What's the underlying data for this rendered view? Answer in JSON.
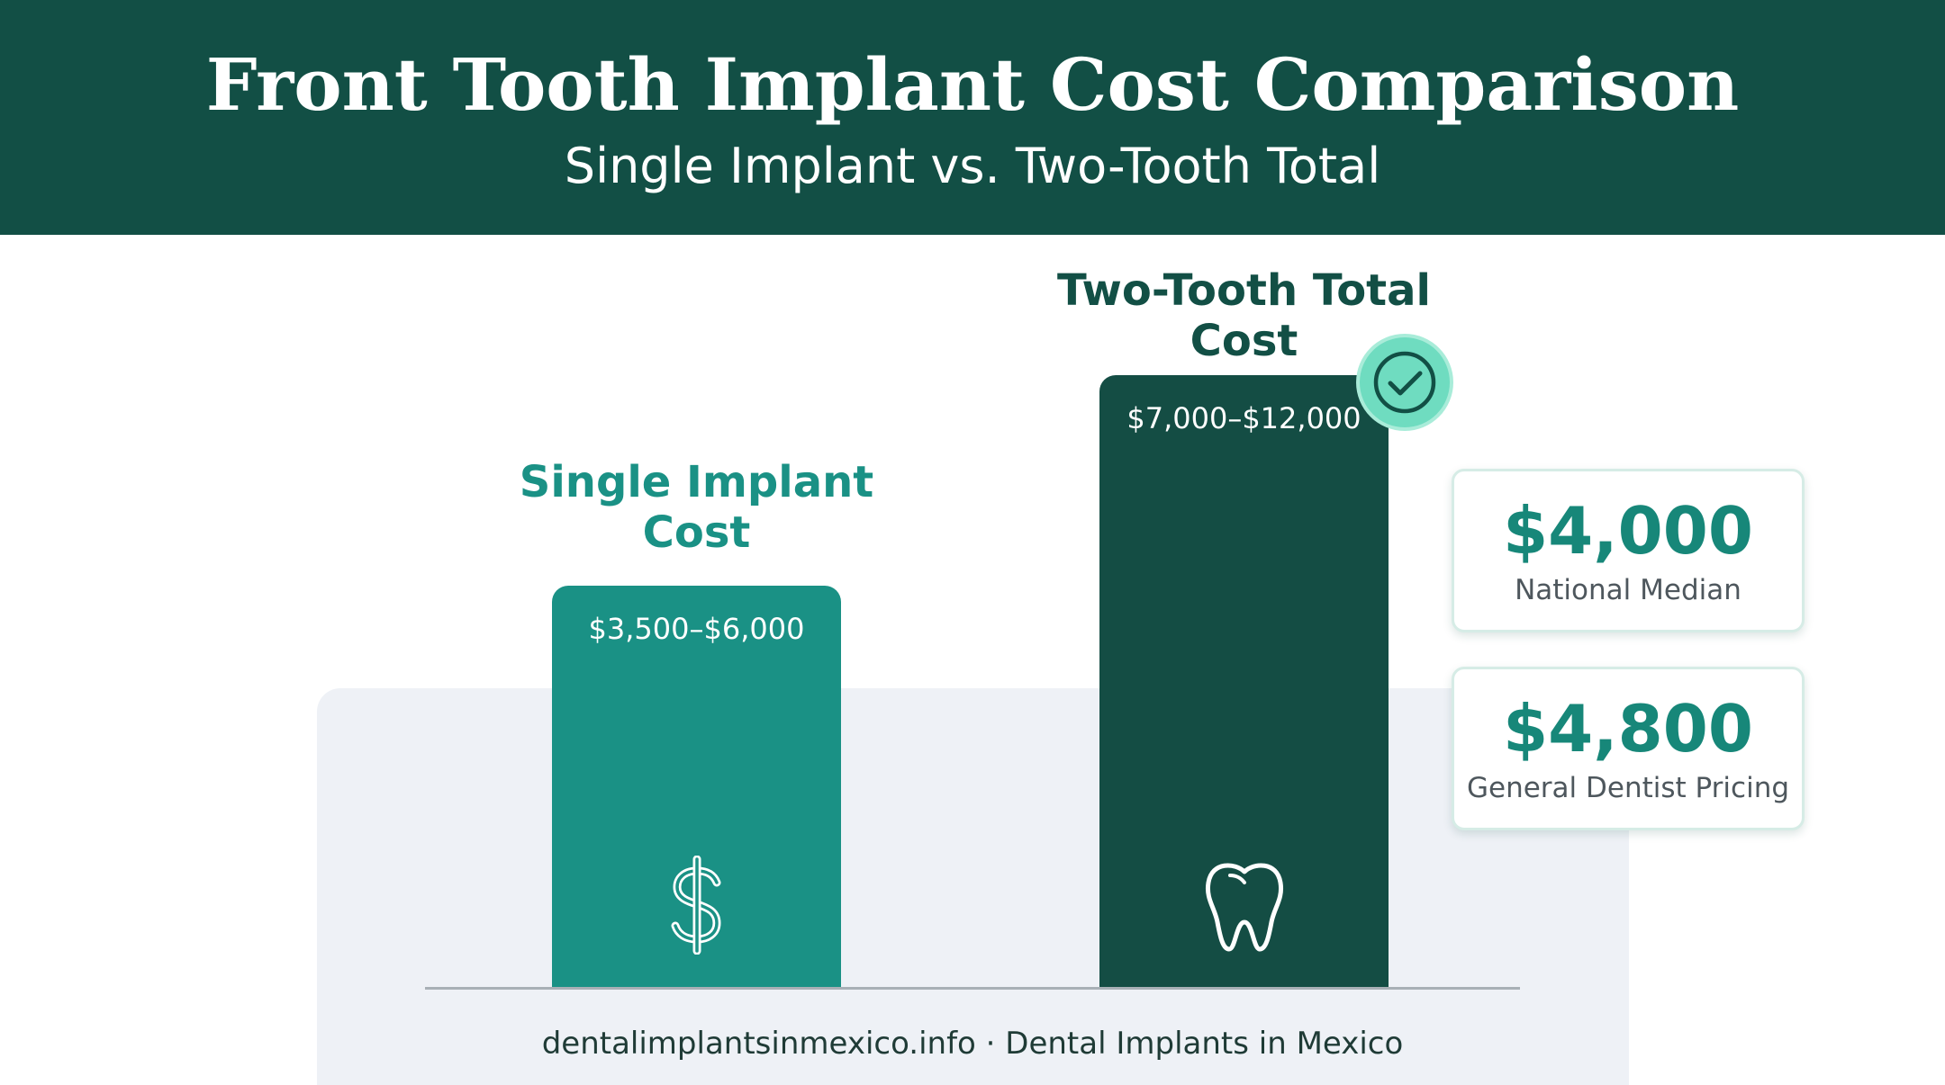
{
  "header": {
    "title": "Front Tooth Implant Cost Comparison",
    "subtitle": "Single Implant vs. Two-Tooth Total"
  },
  "chart_data": {
    "type": "bar",
    "title": "Front Tooth Implant Cost Comparison",
    "subtitle": "Single Implant vs. Two-Tooth Total",
    "categories": [
      "Single Implant Cost",
      "Two-Tooth Total Cost"
    ],
    "values": [
      [
        3500,
        6000
      ],
      [
        7000,
        12000
      ]
    ],
    "value_labels": [
      "$3,500–$6,000",
      "$7,000–$12,000"
    ],
    "xlabel": "",
    "ylabel": "",
    "grid": false,
    "colors": [
      "#1a9185",
      "#144d44"
    ],
    "icons": [
      "dollar-icon",
      "tooth-icon"
    ],
    "highlight": {
      "category": "Two-Tooth Total Cost",
      "icon": "checkmark-icon"
    }
  },
  "stats": [
    {
      "value": "$4,000",
      "label": "National Median"
    },
    {
      "value": "$4,800",
      "label": "General Dentist Pricing"
    }
  ],
  "footer": {
    "text": "dentalimplantsinmexico.info · Dental Implants in Mexico"
  },
  "colors": {
    "header_bg": "#124f45",
    "accent": "#1a9185",
    "dark": "#144d44",
    "check": "#6fdcc0"
  }
}
